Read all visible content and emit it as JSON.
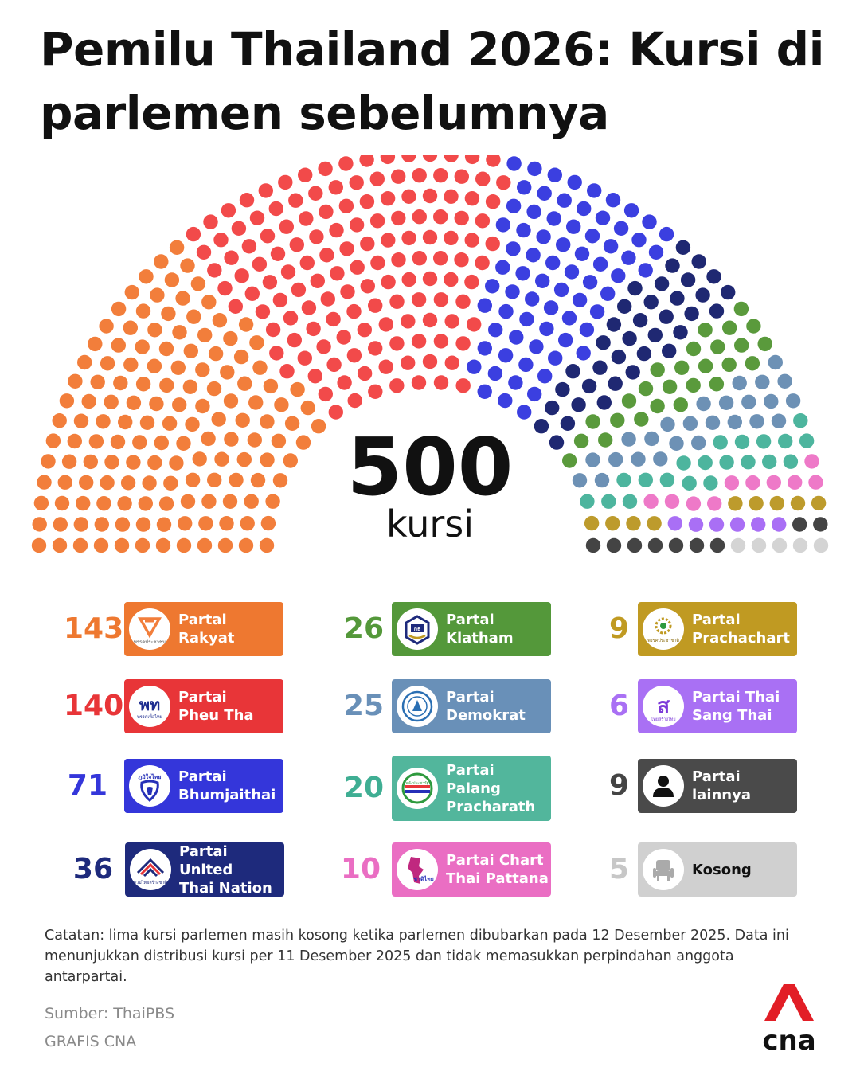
{
  "title": "Pemilu Thailand 2026: Kursi di parlemen sebelumnya",
  "total": {
    "value": "500",
    "unit": "kursi"
  },
  "chart_data": {
    "type": "parliament",
    "total_seats": 500,
    "series": [
      {
        "name": "Partai Rakyat",
        "value": 143,
        "color": "#f27e3b",
        "box_color": "#ee7830",
        "icon": "people-party-logo"
      },
      {
        "name": "Partai Pheu Tha",
        "value": 140,
        "color": "#f24a4a",
        "box_color": "#e83538",
        "icon": "pheu-thai-logo"
      },
      {
        "name": "Partai Bhumjaithai",
        "value": 71,
        "color": "#3b3fe0",
        "box_color": "#3436da",
        "icon": "bhumjaithai-logo"
      },
      {
        "name": "Partai United Thai Nation",
        "value": 36,
        "color": "#1f2872",
        "box_color": "#1e2a7c",
        "icon": "utn-logo"
      },
      {
        "name": "Partai Klatham",
        "value": 26,
        "color": "#5a9a3c",
        "box_color": "#54983a",
        "icon": "klatham-logo"
      },
      {
        "name": "Partai Demokrat",
        "value": 25,
        "color": "#6d91b5",
        "box_color": "#6990b8",
        "icon": "democrat-logo"
      },
      {
        "name": "Partai Palang Pracharath",
        "value": 20,
        "color": "#4db59e",
        "box_color": "#52b69c",
        "icon": "pprp-logo"
      },
      {
        "name": "Partai Chart Thai Pattana",
        "value": 10,
        "color": "#ee79c8",
        "box_color": "#ea6ec3",
        "icon": "chart-thai-logo"
      },
      {
        "name": "Partai Prachachart",
        "value": 9,
        "color": "#bd9b2c",
        "box_color": "#c09a22",
        "icon": "prachachart-logo"
      },
      {
        "name": "Partai Thai Sang Thai",
        "value": 6,
        "color": "#a96ff5",
        "box_color": "#a970f4",
        "icon": "thai-sang-thai-logo"
      },
      {
        "name": "Partai lainnya",
        "value": 9,
        "color": "#444444",
        "box_color": "#4a4a4a",
        "icon": "person-icon"
      },
      {
        "name": "Kosong",
        "value": 5,
        "color": "#d4d4d4",
        "box_color": "#d0d0d0",
        "icon": "chair-icon"
      }
    ]
  },
  "legend": [
    {
      "value": "143",
      "line1": "Partai",
      "line2": "Rakyat"
    },
    {
      "value": "140",
      "line1": "Partai",
      "line2": "Pheu Tha"
    },
    {
      "value": "71",
      "line1": "Partai",
      "line2": "Bhumjaithai"
    },
    {
      "value": "36",
      "line1": "Partai United",
      "line2": "Thai Nation"
    },
    {
      "value": "26",
      "line1": "Partai",
      "line2": "Klatham"
    },
    {
      "value": "25",
      "line1": "Partai",
      "line2": "Demokrat"
    },
    {
      "value": "20",
      "line1": "Partai",
      "line2": "Palang",
      "line3": "Pracharath"
    },
    {
      "value": "10",
      "line1": "Partai Chart",
      "line2": "Thai Pattana"
    },
    {
      "value": "9",
      "line1": "Partai",
      "line2": "Prachachart"
    },
    {
      "value": "6",
      "line1": "Partai Thai",
      "line2": "Sang Thai"
    },
    {
      "value": "9",
      "line1": "Partai",
      "line2": "lainnya"
    },
    {
      "value": "5",
      "line1": "Kosong"
    }
  ],
  "logo_text": {
    "rakyat": "พรรคประชาชน",
    "pheu_thai_mark": "พท",
    "pheu_thai": "พรรคเพื่อไทย",
    "bhumjaithai": "ภูมิใจไทย",
    "utn": "รวมไทยสร้างชาติ",
    "klatham": "กธ",
    "pprp": "พลังประชารัฐ",
    "chart_thai": "ชาติไทย",
    "thai_sang_thai_mark": "ส",
    "thai_sang_thai": "ไทยสร้างไทย",
    "prachachart": "พรรคประชาชาติ"
  },
  "note": "Catatan: lima kursi parlemen masih kosong ketika parlemen dibubarkan pada 12 Desember 2025. Data ini menunjukkan distribusi kursi per 11 Desember 2025 dan tidak memasukkan perpindahan anggota antarpartai.",
  "source": "Sumber: ThaiPBS",
  "credit": "GRAFIS CNA",
  "brand": "cna"
}
